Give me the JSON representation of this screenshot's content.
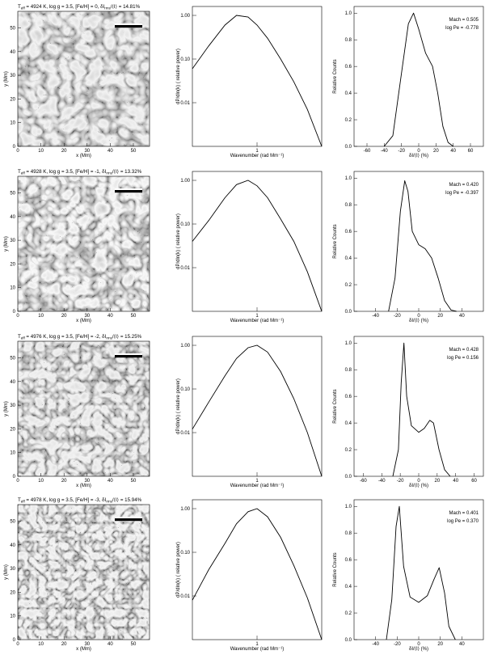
{
  "panels": [
    {
      "title": "T_eff = 4924 K, log g = 3.5, [Fe/H] = 0, δI_rms/⟨I⟩ = 14.81%",
      "title_parts": {
        "t": "4924",
        "feh": "0",
        "rms": "14.81%"
      },
      "mach": "Mach = 0.505",
      "logpe": "log Pe = -0.778",
      "image_xticks": [
        "0",
        "10",
        "20",
        "30",
        "40",
        "50"
      ],
      "image_yticks": [
        "0",
        "10",
        "20",
        "30",
        "40",
        "50"
      ],
      "image_xlabel": "x (Mm)",
      "image_ylabel": "y (Mm)",
      "power_yticks": [
        "1.00",
        "0.10",
        "0.01"
      ],
      "power_xtick": "1",
      "power_ylabel": "dP/dln(k) ( relative power)",
      "power_xlabel": "Wavenumber (rad Mm⁻¹)",
      "hist_xticks": [
        "-60",
        "-40",
        "-20",
        "0",
        "20",
        "40",
        "60"
      ],
      "hist_yticks": [
        "0.0",
        "0.2",
        "0.4",
        "0.6",
        "0.8",
        "1.0"
      ],
      "hist_ylabel": "Relative Counts",
      "hist_xlabel": "δI/⟨I⟩ (%)"
    },
    {
      "title": "T_eff = 4928 K, log g = 3.5, [Fe/H] = -1, δI_rms/⟨I⟩ = 13.32%",
      "title_parts": {
        "t": "4928",
        "feh": "-1",
        "rms": "13.32%"
      },
      "mach": "Mach = 0.420",
      "logpe": "log Pe = -0.397",
      "image_xticks": [
        "0",
        "10",
        "20",
        "30",
        "40",
        "50"
      ],
      "image_yticks": [
        "0",
        "10",
        "20",
        "30",
        "40",
        "50"
      ],
      "image_xlabel": "x (Mm)",
      "image_ylabel": "y (Mm)",
      "power_yticks": [
        "1.00",
        "0.10",
        "0.01"
      ],
      "power_xtick": "1",
      "power_ylabel": "dP/dln(k) ( relative power)",
      "power_xlabel": "Wavenumber (rad Mm⁻¹)",
      "hist_xticks": [
        "-40",
        "-20",
        "0",
        "20",
        "40"
      ],
      "hist_yticks": [
        "0.0",
        "0.2",
        "0.4",
        "0.6",
        "0.8",
        "1.0"
      ],
      "hist_ylabel": "Relative Counts",
      "hist_xlabel": "δI/⟨I⟩ (%)"
    },
    {
      "title": "T_eff = 4976 K, log g = 3.5, [Fe/H] = -2, δI_rms/⟨I⟩ = 15.25%",
      "title_parts": {
        "t": "4976",
        "feh": "-2",
        "rms": "15.25%"
      },
      "mach": "Mach = 0.428",
      "logpe": "log Pe = 0.156",
      "image_xticks": [
        "0",
        "10",
        "20",
        "30",
        "40",
        "50"
      ],
      "image_yticks": [
        "0",
        "10",
        "20",
        "30",
        "40",
        "50"
      ],
      "image_xlabel": "x (Mm)",
      "image_ylabel": "y (Mm)",
      "power_yticks": [
        "1.00",
        "0.10",
        "0.01"
      ],
      "power_xtick": "1",
      "power_ylabel": "dP/dln(k) ( relative power)",
      "power_xlabel": "Wavenumber (rad Mm⁻¹)",
      "hist_xticks": [
        "-60",
        "-40",
        "-20",
        "0",
        "20",
        "40",
        "60"
      ],
      "hist_yticks": [
        "0.0",
        "0.2",
        "0.4",
        "0.6",
        "0.8",
        "1.0"
      ],
      "hist_ylabel": "Relative Counts",
      "hist_xlabel": "δI/⟨I⟩ (%)"
    },
    {
      "title": "T_eff = 4978 K, log g = 3.5, [Fe/H] = -3, δI_rms/⟨I⟩ = 15.94%",
      "title_parts": {
        "t": "4978",
        "feh": "-3",
        "rms": "15.94%"
      },
      "mach": "Mach = 0.401",
      "logpe": "log Pe = 0.370",
      "image_xticks": [
        "0",
        "10",
        "20",
        "30",
        "40",
        "50"
      ],
      "image_yticks": [
        "0",
        "10",
        "20",
        "30",
        "40",
        "50"
      ],
      "image_xlabel": "x (Mm)",
      "image_ylabel": "y (Mm)",
      "power_yticks": [
        "1.00",
        "0.10",
        "0.01"
      ],
      "power_xtick": "1",
      "power_ylabel": "dP/dln(k) ( relative power)",
      "power_xlabel": "Wavenumber (rad Mm⁻¹)",
      "hist_xticks": [
        "-40",
        "-20",
        "0",
        "20",
        "40"
      ],
      "hist_yticks": [
        "0.0",
        "0.2",
        "0.4",
        "0.6",
        "0.8",
        "1.0"
      ],
      "hist_ylabel": "Relative Counts",
      "hist_xlabel": "δI/⟨I⟩ (%)"
    }
  ],
  "chart_data": [
    {
      "type": "line",
      "panel": "power-1",
      "x_scale": "log",
      "y_scale": "log",
      "ylim": [
        0.001,
        1.5
      ],
      "x": [
        0.2,
        0.3,
        0.45,
        0.6,
        0.8,
        1.0,
        1.3,
        1.8,
        2.5,
        3.5,
        5.0
      ],
      "y": [
        0.06,
        0.2,
        0.6,
        1.0,
        0.92,
        0.6,
        0.3,
        0.1,
        0.03,
        0.007,
        0.001
      ]
    },
    {
      "type": "line",
      "panel": "hist-1",
      "xlim": [
        -75,
        75
      ],
      "ylim": [
        0,
        1.05
      ],
      "x": [
        -40,
        -30,
        -20,
        -12,
        -6,
        0,
        8,
        16,
        22,
        28,
        34,
        40
      ],
      "y": [
        0.0,
        0.08,
        0.55,
        0.92,
        1.0,
        0.88,
        0.7,
        0.6,
        0.4,
        0.15,
        0.03,
        0.0
      ]
    },
    {
      "type": "line",
      "panel": "power-2",
      "x_scale": "log",
      "y_scale": "log",
      "ylim": [
        0.001,
        1.5
      ],
      "x": [
        0.2,
        0.3,
        0.45,
        0.6,
        0.8,
        1.0,
        1.3,
        1.8,
        2.5,
        3.5,
        5.0
      ],
      "y": [
        0.04,
        0.12,
        0.4,
        0.8,
        1.0,
        0.75,
        0.4,
        0.13,
        0.04,
        0.008,
        0.001
      ]
    },
    {
      "type": "line",
      "panel": "hist-2",
      "xlim": [
        -60,
        60
      ],
      "ylim": [
        0,
        1.05
      ],
      "x": [
        -28,
        -22,
        -17,
        -13,
        -10,
        -6,
        0,
        6,
        12,
        18,
        24,
        30,
        35
      ],
      "y": [
        0.0,
        0.25,
        0.75,
        0.98,
        0.9,
        0.6,
        0.5,
        0.47,
        0.4,
        0.25,
        0.08,
        0.01,
        0.0
      ]
    },
    {
      "type": "line",
      "panel": "power-3",
      "x_scale": "log",
      "y_scale": "log",
      "ylim": [
        0.001,
        1.5
      ],
      "x": [
        0.2,
        0.3,
        0.45,
        0.6,
        0.8,
        1.0,
        1.3,
        1.8,
        2.5,
        3.5,
        5.0
      ],
      "y": [
        0.012,
        0.05,
        0.2,
        0.5,
        0.88,
        1.0,
        0.7,
        0.25,
        0.06,
        0.01,
        0.001
      ]
    },
    {
      "type": "line",
      "panel": "hist-3",
      "xlim": [
        -70,
        70
      ],
      "ylim": [
        0,
        1.05
      ],
      "x": [
        -28,
        -22,
        -19,
        -16,
        -13,
        -8,
        0,
        6,
        12,
        16,
        22,
        28,
        34
      ],
      "y": [
        0.0,
        0.2,
        0.7,
        1.0,
        0.6,
        0.38,
        0.33,
        0.36,
        0.42,
        0.4,
        0.2,
        0.05,
        0.0
      ]
    },
    {
      "type": "line",
      "panel": "power-4",
      "x_scale": "log",
      "y_scale": "log",
      "ylim": [
        0.001,
        1.5
      ],
      "x": [
        0.2,
        0.3,
        0.45,
        0.6,
        0.8,
        1.0,
        1.3,
        1.8,
        2.5,
        3.5,
        5.0
      ],
      "y": [
        0.008,
        0.04,
        0.16,
        0.45,
        0.85,
        1.0,
        0.65,
        0.22,
        0.05,
        0.009,
        0.001
      ]
    },
    {
      "type": "line",
      "panel": "hist-4",
      "xlim": [
        -60,
        60
      ],
      "ylim": [
        0,
        1.05
      ],
      "x": [
        -30,
        -25,
        -21,
        -18,
        -14,
        -8,
        0,
        8,
        14,
        19,
        24,
        28,
        34
      ],
      "y": [
        0.0,
        0.3,
        0.85,
        1.0,
        0.55,
        0.32,
        0.28,
        0.33,
        0.45,
        0.54,
        0.35,
        0.1,
        0.0
      ]
    }
  ]
}
